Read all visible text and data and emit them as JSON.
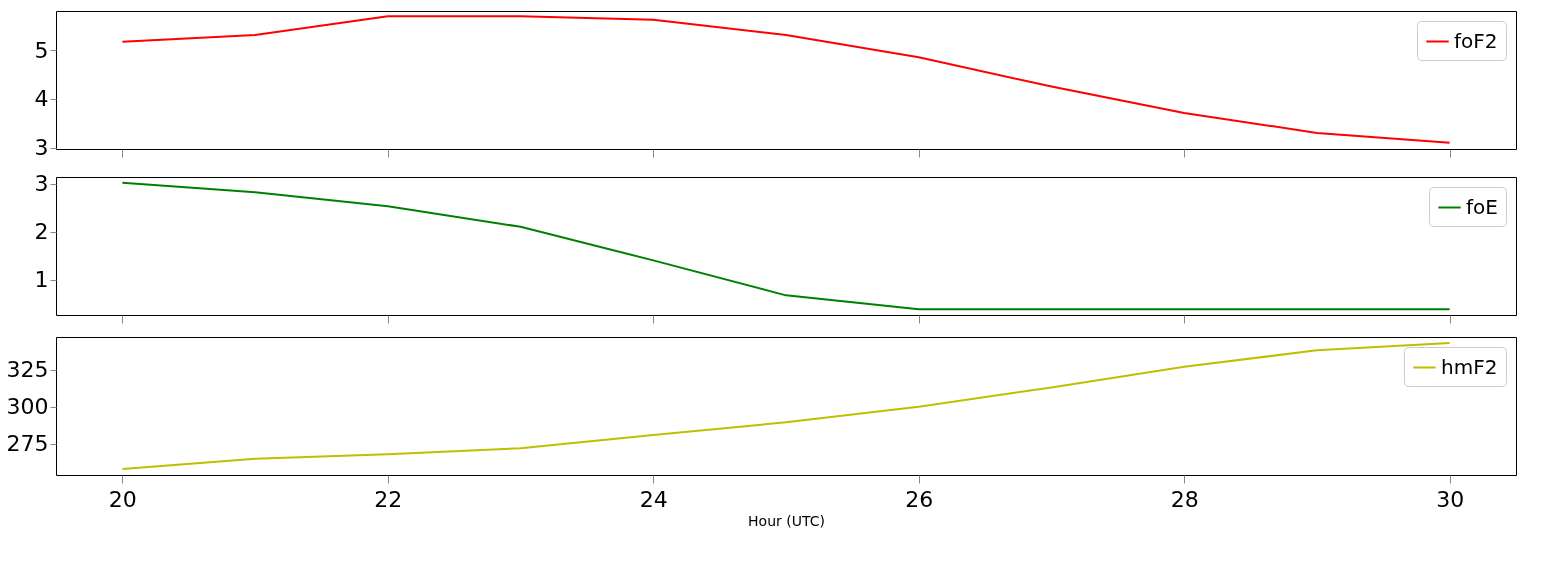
{
  "chart_data": [
    {
      "type": "line",
      "x": [
        20,
        21,
        22,
        23,
        24,
        25,
        26,
        27,
        28,
        29,
        30
      ],
      "xlim": [
        19.5,
        30.5
      ],
      "xticks": [
        20,
        22,
        24,
        26,
        28,
        30
      ],
      "ylim": [
        2.97,
        5.8
      ],
      "yticks": [
        3,
        4,
        5
      ],
      "tick_labels": "y",
      "legend": "top right",
      "grid": false,
      "series": [
        {
          "name": "foF2",
          "color": "#ff0000",
          "values": [
            5.17,
            5.31,
            5.69,
            5.69,
            5.62,
            5.31,
            4.85,
            4.25,
            3.71,
            3.3,
            3.1
          ]
        }
      ]
    },
    {
      "type": "line",
      "x": [
        20,
        21,
        22,
        23,
        24,
        25,
        26,
        27,
        28,
        29,
        30
      ],
      "xlim": [
        19.5,
        30.5
      ],
      "xticks": [
        20,
        22,
        24,
        26,
        28,
        30
      ],
      "ylim": [
        0.26,
        3.14
      ],
      "yticks": [
        1,
        2,
        3
      ],
      "tick_labels": "y",
      "legend": "top right",
      "grid": false,
      "series": [
        {
          "name": "foE",
          "color": "#008000",
          "values": [
            3.02,
            2.82,
            2.53,
            2.1,
            1.4,
            0.67,
            0.38,
            0.38,
            0.38,
            0.38,
            0.38
          ]
        }
      ]
    },
    {
      "type": "line",
      "x": [
        20,
        21,
        22,
        23,
        24,
        25,
        26,
        27,
        28,
        29,
        30
      ],
      "xlim": [
        19.5,
        30.5
      ],
      "xticks": [
        20,
        22,
        24,
        26,
        28,
        30
      ],
      "ylim": [
        254,
        347
      ],
      "yticks": [
        275,
        300,
        325
      ],
      "xlabel": "Hour (UTC)",
      "legend": "top right",
      "grid": false,
      "series": [
        {
          "name": "hmF2",
          "color": "#bfbf00",
          "values": [
            258,
            265,
            268,
            272,
            281,
            289.5,
            300,
            313,
            327,
            338,
            343
          ]
        }
      ]
    }
  ]
}
